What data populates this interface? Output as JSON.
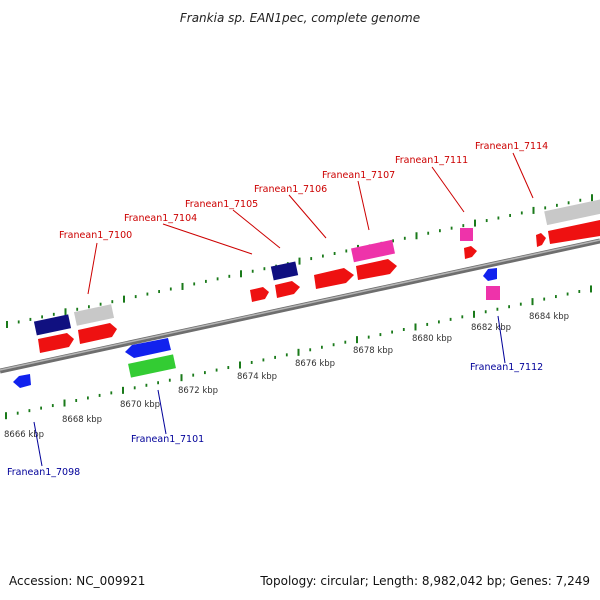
{
  "title": "Frankia sp. EAN1pec, complete genome",
  "footer": {
    "accession": "Accession: NC_009921",
    "topology": "Topology: circular; Length: 8,982,042 bp; Genes: 7,249"
  },
  "kbp_labels": [
    "8666 kbp",
    "8668 kbp",
    "8670 kbp",
    "8672 kbp",
    "8674 kbp",
    "8676 kbp",
    "8678 kbp",
    "8680 kbp",
    "8682 kbp",
    "8684 kbp"
  ],
  "top_genes": [
    "Franean1_7100",
    "Franean1_7104",
    "Franean1_7105",
    "Franean1_7106",
    "Franean1_7107",
    "Franean1_7111",
    "Franean1_7114"
  ],
  "bottom_genes": [
    "Franean1_7098",
    "Franean1_7101",
    "Franean1_7112"
  ],
  "colors": {
    "backbone": "#8c8c8c",
    "tick": "#1a7a1a",
    "red": "#ee1111",
    "navy": "#101080",
    "gray": "#c8c8c8",
    "magenta": "#ee33aa",
    "blue": "#1122ee",
    "green": "#33cc33",
    "label_red": "#cc0000",
    "label_blue": "#000099"
  }
}
